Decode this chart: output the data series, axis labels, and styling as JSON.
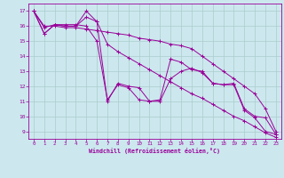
{
  "xlabel": "Windchill (Refroidissement éolien,°C)",
  "x_ticks": [
    0,
    1,
    2,
    3,
    4,
    5,
    6,
    7,
    8,
    9,
    10,
    11,
    12,
    13,
    14,
    15,
    16,
    17,
    18,
    19,
    20,
    21,
    22,
    23
  ],
  "ylim": [
    8.5,
    17.5
  ],
  "xlim": [
    -0.5,
    23.5
  ],
  "yticks": [
    9,
    10,
    11,
    12,
    13,
    14,
    15,
    16,
    17
  ],
  "line_color": "#990099",
  "bg_color": "#cce8ee",
  "grid_color": "#aacccc",
  "series1_y": [
    17.0,
    15.5,
    16.1,
    16.0,
    16.0,
    16.6,
    16.3,
    11.0,
    12.2,
    12.0,
    11.9,
    11.0,
    11.1,
    13.8,
    13.6,
    13.1,
    13.0,
    12.2,
    12.1,
    12.2,
    10.5,
    10.0,
    9.9,
    8.8
  ],
  "series2_y": [
    17.0,
    15.5,
    16.1,
    16.0,
    16.0,
    17.0,
    16.3,
    14.8,
    14.3,
    13.9,
    13.5,
    13.1,
    12.7,
    12.3,
    11.9,
    11.5,
    11.2,
    10.8,
    10.4,
    10.0,
    9.7,
    9.3,
    8.9,
    8.6
  ],
  "series3_y": [
    17.0,
    15.9,
    16.1,
    16.1,
    16.1,
    16.0,
    15.0,
    11.1,
    12.1,
    11.9,
    11.1,
    11.0,
    11.0,
    12.5,
    13.0,
    13.2,
    12.9,
    12.2,
    12.1,
    12.1,
    10.4,
    9.9,
    9.0,
    8.8
  ],
  "series4_y": [
    17.0,
    16.0,
    16.0,
    15.9,
    15.9,
    15.8,
    15.7,
    15.6,
    15.5,
    15.4,
    15.2,
    15.1,
    15.0,
    14.8,
    14.7,
    14.5,
    14.0,
    13.5,
    13.0,
    12.5,
    12.0,
    11.5,
    10.5,
    9.0
  ]
}
